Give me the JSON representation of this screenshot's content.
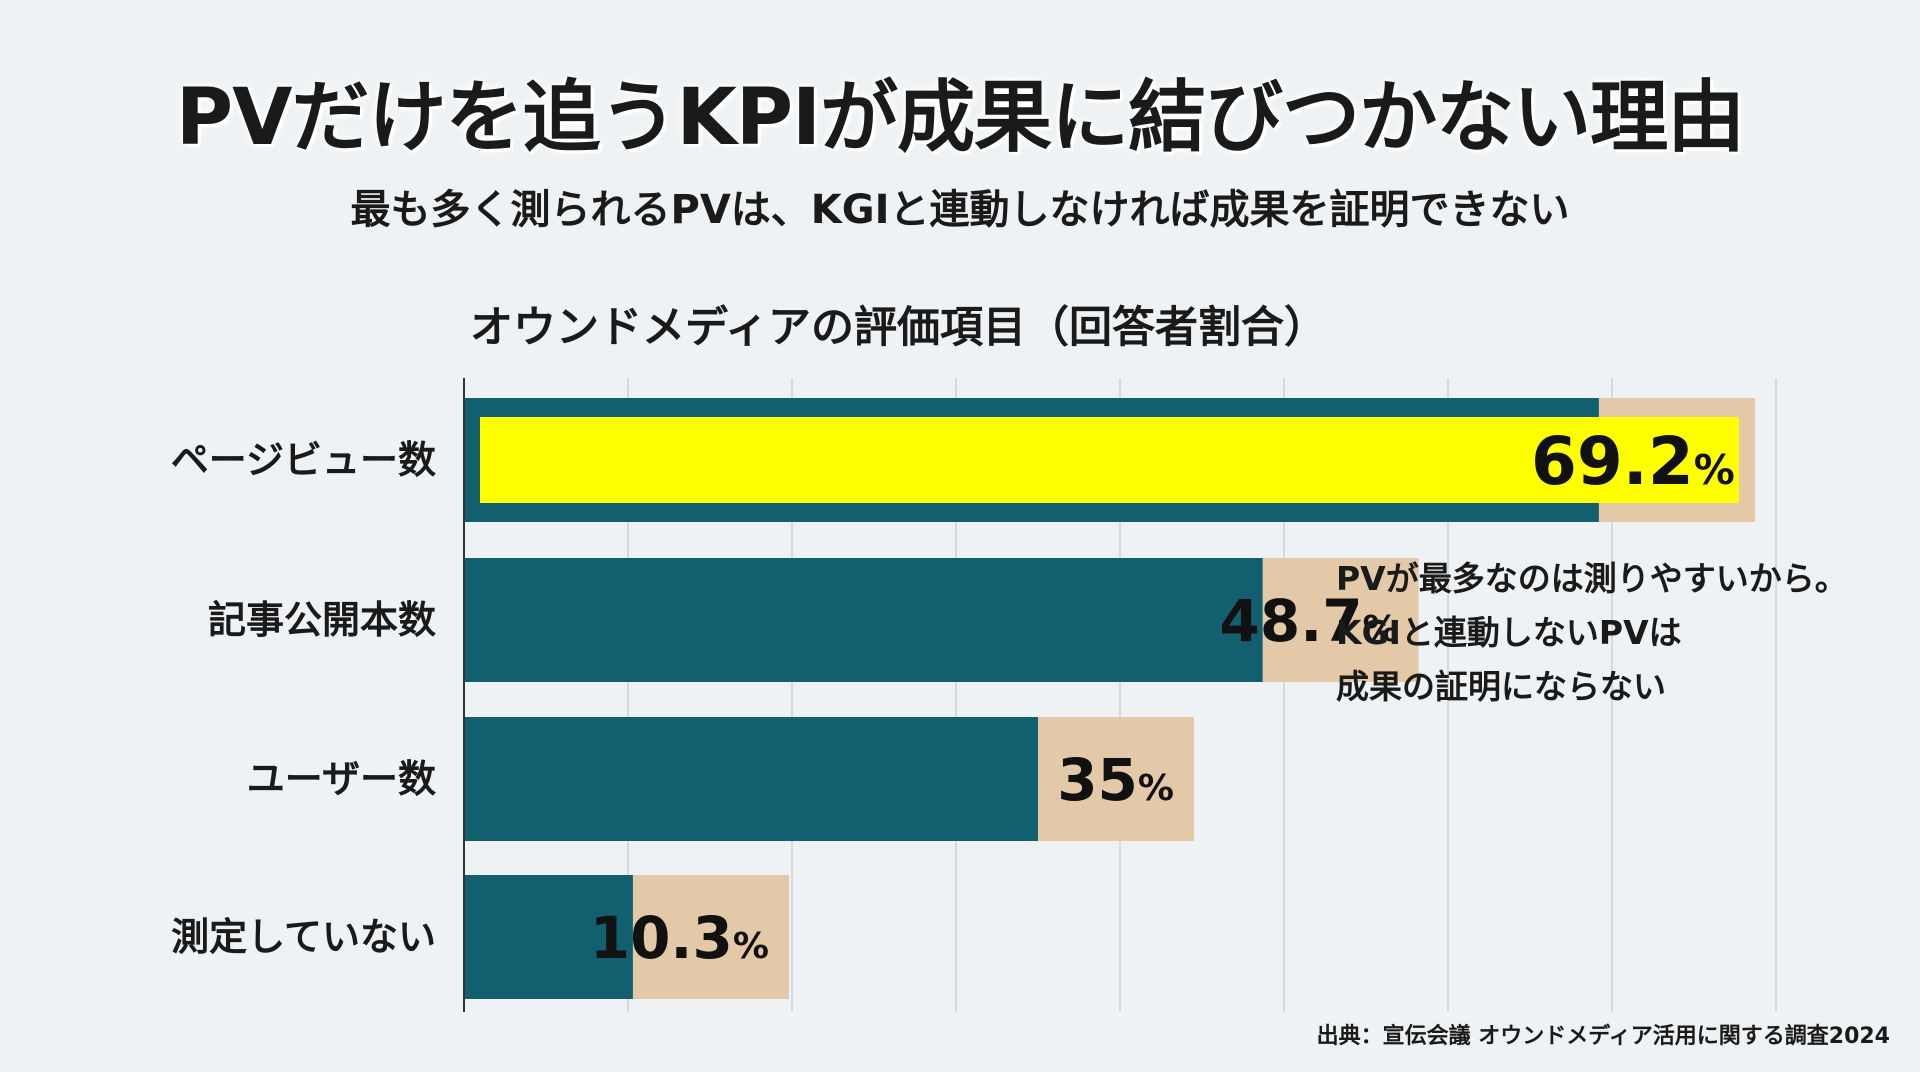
{
  "title": "PVだけを追うKPIが成果に結びつかない理由",
  "subtitle": "最も多く測られるPVは、KGIと連動しなければ成果を証明できない",
  "annotation": {
    "lines": [
      "PVが最多なのは測りやすいから。",
      "KGIと連動しないPVは",
      "成果の証明にならない"
    ]
  },
  "source": "出典：宣伝会議 オウンドメディア活用に関する調査2024",
  "colors": {
    "bar": "#125f70",
    "bar_extension": "#e3c9a8",
    "highlight": "#ffff00",
    "highlight_border": "#125f70",
    "gridline": "#d6dadd",
    "axis": "#333333"
  },
  "chart_data": {
    "type": "bar",
    "orientation": "horizontal",
    "title": "オウンドメディアの評価項目（回答者割合）",
    "categories": [
      "ページビュー数",
      "記事公開本数",
      "ユーザー数",
      "測定していない"
    ],
    "values": [
      69.2,
      48.7,
      35,
      10.3
    ],
    "value_labels": [
      "69.2",
      "48.7",
      "35",
      "10.3"
    ],
    "unit": "%",
    "highlighted_category": "ページビュー数",
    "xlim": [
      0,
      80
    ],
    "grid": true
  }
}
